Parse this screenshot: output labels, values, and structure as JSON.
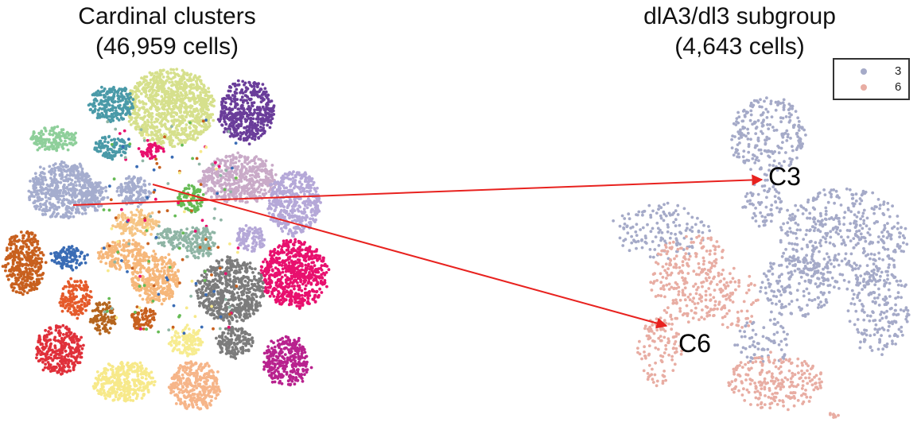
{
  "panels": {
    "left_title": "Cardinal clusters\n(46,959 cells)",
    "right_title": "dlA3/dl3 subgroup\n(4,643 cells)"
  },
  "callouts": {
    "c3": "C3",
    "c6": "C6"
  },
  "arrow_color": "#e8221f",
  "chart_data": [
    {
      "type": "scatter",
      "title": "Cardinal clusters (46,959 cells)",
      "xlabel": "",
      "ylabel": "",
      "grid": false,
      "n_cells": 46959,
      "clusters": [
        {
          "color": "#d6e08c",
          "cx": 215,
          "cy": 135,
          "rx": 55,
          "ry": 48
        },
        {
          "color": "#4a9aa8",
          "cx": 140,
          "cy": 130,
          "rx": 28,
          "ry": 22
        },
        {
          "color": "#6a3d9a",
          "cx": 310,
          "cy": 140,
          "rx": 35,
          "ry": 38
        },
        {
          "color": "#8ecf9a",
          "cx": 68,
          "cy": 175,
          "rx": 30,
          "ry": 14
        },
        {
          "color": "#4a9aa8",
          "cx": 140,
          "cy": 185,
          "rx": 22,
          "ry": 14
        },
        {
          "color": "#e8106e",
          "cx": 190,
          "cy": 190,
          "rx": 14,
          "ry": 10
        },
        {
          "color": "#a5adce",
          "cx": 78,
          "cy": 240,
          "rx": 42,
          "ry": 35
        },
        {
          "color": "#a5adce",
          "cx": 118,
          "cy": 245,
          "rx": 15,
          "ry": 20
        },
        {
          "color": "#c9aac8",
          "cx": 300,
          "cy": 225,
          "rx": 48,
          "ry": 30
        },
        {
          "color": "#b5a8d8",
          "cx": 370,
          "cy": 255,
          "rx": 33,
          "ry": 40
        },
        {
          "color": "#66bb55",
          "cx": 240,
          "cy": 250,
          "rx": 16,
          "ry": 16
        },
        {
          "color": "#a5adce",
          "cx": 170,
          "cy": 240,
          "rx": 22,
          "ry": 18
        },
        {
          "color": "#f6c585",
          "cx": 170,
          "cy": 280,
          "rx": 28,
          "ry": 16
        },
        {
          "color": "#8fb5a5",
          "cx": 215,
          "cy": 300,
          "rx": 18,
          "ry": 12
        },
        {
          "color": "#8fb5a5",
          "cx": 250,
          "cy": 305,
          "rx": 20,
          "ry": 20
        },
        {
          "color": "#b5a8d8",
          "cx": 315,
          "cy": 300,
          "rx": 18,
          "ry": 16
        },
        {
          "color": "#3a6cb5",
          "cx": 87,
          "cy": 325,
          "rx": 22,
          "ry": 14
        },
        {
          "color": "#c8601e",
          "cx": 30,
          "cy": 330,
          "rx": 25,
          "ry": 40
        },
        {
          "color": "#f6b77a",
          "cx": 155,
          "cy": 320,
          "rx": 30,
          "ry": 18
        },
        {
          "color": "#f6b77a",
          "cx": 195,
          "cy": 350,
          "rx": 30,
          "ry": 32
        },
        {
          "color": "#e8106e",
          "cx": 370,
          "cy": 345,
          "rx": 42,
          "ry": 42
        },
        {
          "color": "#7c7c7c",
          "cx": 290,
          "cy": 365,
          "rx": 42,
          "ry": 40
        },
        {
          "color": "#e55a2a",
          "cx": 95,
          "cy": 375,
          "rx": 20,
          "ry": 22
        },
        {
          "color": "#b5651e",
          "cx": 130,
          "cy": 400,
          "rx": 15,
          "ry": 20
        },
        {
          "color": "#c8601e",
          "cx": 180,
          "cy": 400,
          "rx": 15,
          "ry": 15
        },
        {
          "color": "#e0303a",
          "cx": 75,
          "cy": 440,
          "rx": 30,
          "ry": 30
        },
        {
          "color": "#7c7c7c",
          "cx": 295,
          "cy": 430,
          "rx": 22,
          "ry": 20
        },
        {
          "color": "#b8228e",
          "cx": 360,
          "cy": 455,
          "rx": 28,
          "ry": 30
        },
        {
          "color": "#f7e98a",
          "cx": 155,
          "cy": 480,
          "rx": 38,
          "ry": 25
        },
        {
          "color": "#f7ec90",
          "cx": 235,
          "cy": 430,
          "rx": 20,
          "ry": 18
        },
        {
          "color": "#f6b589",
          "cx": 245,
          "cy": 485,
          "rx": 32,
          "ry": 30
        }
      ]
    },
    {
      "type": "scatter",
      "title": "dlA3/dl3 subgroup (4,643 cells)",
      "xlabel": "",
      "ylabel": "",
      "grid": false,
      "n_cells": 4643,
      "legend": {
        "position": "top-right",
        "entries": [
          {
            "label": "3",
            "color": "#a5aac8"
          },
          {
            "label": "6",
            "color": "#e8ada3"
          }
        ]
      }
    }
  ]
}
